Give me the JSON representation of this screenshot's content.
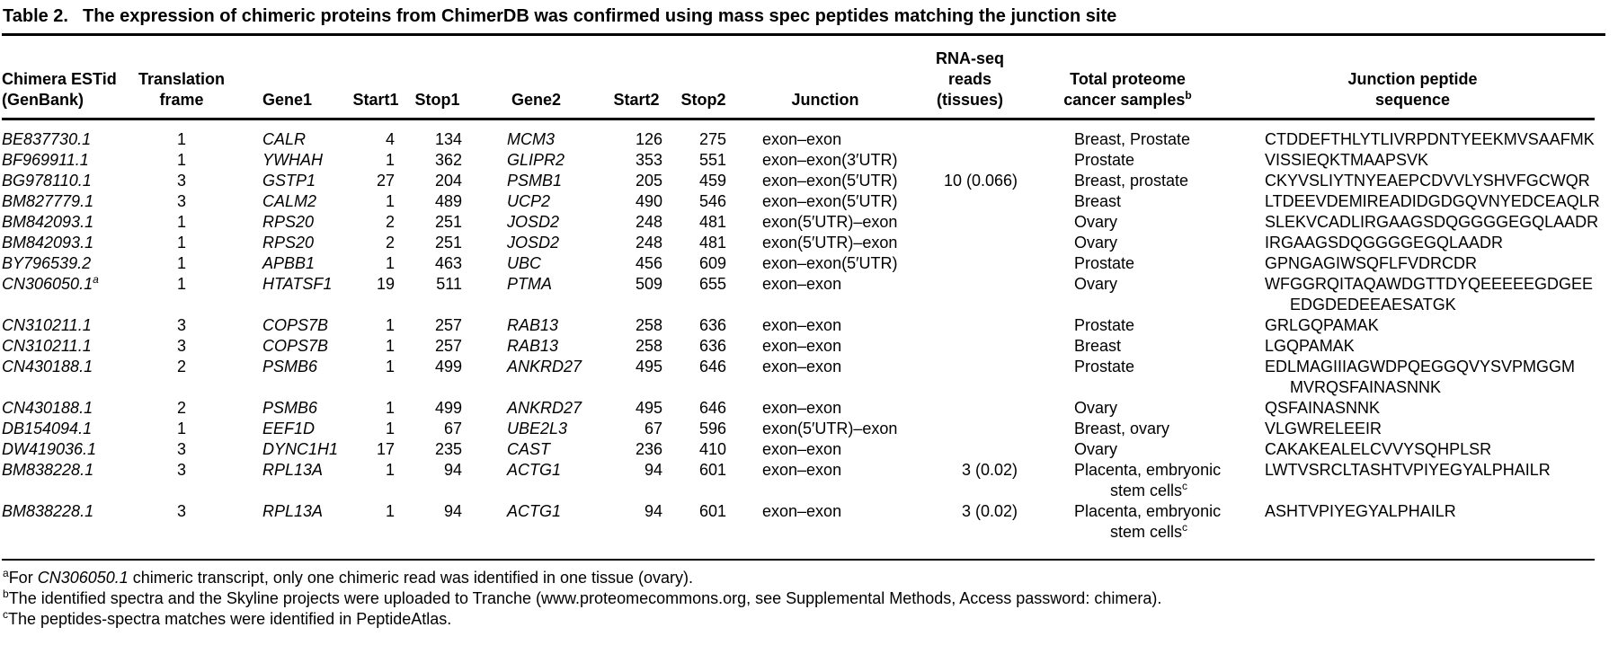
{
  "title": {
    "label": "Table 2.",
    "caption": "The expression of chimeric proteins from ChimerDB was confirmed using mass spec peptides matching the junction site"
  },
  "table": {
    "columns": [
      {
        "key": "estid",
        "label_lines": [
          "Chimera ESTid",
          "(GenBank)"
        ]
      },
      {
        "key": "frame",
        "label_lines": [
          "Translation",
          "frame"
        ]
      },
      {
        "key": "gene1",
        "label_lines": [
          "Gene1"
        ]
      },
      {
        "key": "start1",
        "label_lines": [
          "Start1"
        ]
      },
      {
        "key": "stop1",
        "label_lines": [
          "Stop1"
        ]
      },
      {
        "key": "gene2",
        "label_lines": [
          "Gene2"
        ]
      },
      {
        "key": "start2",
        "label_lines": [
          "Start2"
        ]
      },
      {
        "key": "stop2",
        "label_lines": [
          "Stop2"
        ]
      },
      {
        "key": "junction",
        "label_lines": [
          "Junction"
        ]
      },
      {
        "key": "rnaseq",
        "label_lines": [
          "RNA-seq",
          "reads",
          "(tissues)"
        ]
      },
      {
        "key": "samples",
        "label_lines": [
          "Total proteome",
          "cancer samples"
        ],
        "sup": "b"
      },
      {
        "key": "peptide",
        "label_lines": [
          "Junction peptide",
          "sequence"
        ]
      }
    ],
    "rows": [
      {
        "estid": "BE837730.1",
        "estid_sup": "",
        "frame": "1",
        "gene1": "CALR",
        "start1": "4",
        "stop1": "134",
        "gene2": "MCM3",
        "start2": "126",
        "stop2": "275",
        "junction": "exon–exon",
        "rnaseq": "",
        "samples": [
          "Breast, Prostate"
        ],
        "samples_sup": "",
        "peptide": [
          "CTDDEFTHLYTLIVRPDNTYEEKMVSAAFMK"
        ]
      },
      {
        "estid": "BF969911.1",
        "estid_sup": "",
        "frame": "1",
        "gene1": "YWHAH",
        "start1": "1",
        "stop1": "362",
        "gene2": "GLIPR2",
        "start2": "353",
        "stop2": "551",
        "junction": "exon–exon(3′UTR)",
        "rnaseq": "",
        "samples": [
          "Prostate"
        ],
        "samples_sup": "",
        "peptide": [
          "VISSIEQKTMAAPSVK"
        ]
      },
      {
        "estid": "BG978110.1",
        "estid_sup": "",
        "frame": "3",
        "gene1": "GSTP1",
        "start1": "27",
        "stop1": "204",
        "gene2": "PSMB1",
        "start2": "205",
        "stop2": "459",
        "junction": "exon–exon(5′UTR)",
        "rnaseq": "10 (0.066)",
        "samples": [
          "Breast, prostate"
        ],
        "samples_sup": "",
        "peptide": [
          "CKYVSLIYTNYEAEPCDVVLYSHVFGCWQR"
        ]
      },
      {
        "estid": "BM827779.1",
        "estid_sup": "",
        "frame": "3",
        "gene1": "CALM2",
        "start1": "1",
        "stop1": "489",
        "gene2": "UCP2",
        "start2": "490",
        "stop2": "546",
        "junction": "exon–exon(5′UTR)",
        "rnaseq": "",
        "samples": [
          "Breast"
        ],
        "samples_sup": "",
        "peptide": [
          "LTDEEVDEMIREADIDGDGQVNYEDCEAQLR"
        ]
      },
      {
        "estid": "BM842093.1",
        "estid_sup": "",
        "frame": "1",
        "gene1": "RPS20",
        "start1": "2",
        "stop1": "251",
        "gene2": "JOSD2",
        "start2": "248",
        "stop2": "481",
        "junction": "exon(5′UTR)–exon",
        "rnaseq": "",
        "samples": [
          "Ovary"
        ],
        "samples_sup": "",
        "peptide": [
          "SLEKVCADLIRGAAGSDQGGGGEGQLAADR"
        ]
      },
      {
        "estid": "BM842093.1",
        "estid_sup": "",
        "frame": "1",
        "gene1": "RPS20",
        "start1": "2",
        "stop1": "251",
        "gene2": "JOSD2",
        "start2": "248",
        "stop2": "481",
        "junction": "exon(5′UTR)–exon",
        "rnaseq": "",
        "samples": [
          "Ovary"
        ],
        "samples_sup": "",
        "peptide": [
          "IRGAAGSDQGGGGEGQLAADR"
        ]
      },
      {
        "estid": "BY796539.2",
        "estid_sup": "",
        "frame": "1",
        "gene1": "APBB1",
        "start1": "1",
        "stop1": "463",
        "gene2": "UBC",
        "start2": "456",
        "stop2": "609",
        "junction": "exon–exon(5′UTR)",
        "rnaseq": "",
        "samples": [
          "Prostate"
        ],
        "samples_sup": "",
        "peptide": [
          "GPNGAGIWSQFLFVDRCDR"
        ]
      },
      {
        "estid": "CN306050.1",
        "estid_sup": "a",
        "frame": "1",
        "gene1": "HTATSF1",
        "start1": "19",
        "stop1": "511",
        "gene2": "PTMA",
        "start2": "509",
        "stop2": "655",
        "junction": "exon–exon",
        "rnaseq": "",
        "samples": [
          "Ovary"
        ],
        "samples_sup": "",
        "peptide": [
          "WFGGRQITAQAWDGTTDYQEEEEEGDGEE",
          "EDGDEDEEAESATGK"
        ]
      },
      {
        "estid": "CN310211.1",
        "estid_sup": "",
        "frame": "3",
        "gene1": "COPS7B",
        "start1": "1",
        "stop1": "257",
        "gene2": "RAB13",
        "start2": "258",
        "stop2": "636",
        "junction": "exon–exon",
        "rnaseq": "",
        "samples": [
          "Prostate"
        ],
        "samples_sup": "",
        "peptide": [
          "GRLGQPAMAK"
        ]
      },
      {
        "estid": "CN310211.1",
        "estid_sup": "",
        "frame": "3",
        "gene1": "COPS7B",
        "start1": "1",
        "stop1": "257",
        "gene2": "RAB13",
        "start2": "258",
        "stop2": "636",
        "junction": "exon–exon",
        "rnaseq": "",
        "samples": [
          "Breast"
        ],
        "samples_sup": "",
        "peptide": [
          "LGQPAMAK"
        ]
      },
      {
        "estid": "CN430188.1",
        "estid_sup": "",
        "frame": "2",
        "gene1": "PSMB6",
        "start1": "1",
        "stop1": "499",
        "gene2": "ANKRD27",
        "start2": "495",
        "stop2": "646",
        "junction": "exon–exon",
        "rnaseq": "",
        "samples": [
          "Prostate"
        ],
        "samples_sup": "",
        "peptide": [
          "EDLMAGIIIAGWDPQEGGQVYSVPMGGM",
          "MVRQSFAINASNNK"
        ]
      },
      {
        "estid": "CN430188.1",
        "estid_sup": "",
        "frame": "2",
        "gene1": "PSMB6",
        "start1": "1",
        "stop1": "499",
        "gene2": "ANKRD27",
        "start2": "495",
        "stop2": "646",
        "junction": "exon–exon",
        "rnaseq": "",
        "samples": [
          "Ovary"
        ],
        "samples_sup": "",
        "peptide": [
          "QSFAINASNNK"
        ]
      },
      {
        "estid": "DB154094.1",
        "estid_sup": "",
        "frame": "1",
        "gene1": "EEF1D",
        "start1": "1",
        "stop1": "67",
        "gene2": "UBE2L3",
        "start2": "67",
        "stop2": "596",
        "junction": "exon(5′UTR)–exon",
        "rnaseq": "",
        "samples": [
          "Breast, ovary"
        ],
        "samples_sup": "",
        "peptide": [
          "VLGWRELEEIR"
        ]
      },
      {
        "estid": "DW419036.1",
        "estid_sup": "",
        "frame": "3",
        "gene1": "DYNC1H1",
        "start1": "17",
        "stop1": "235",
        "gene2": "CAST",
        "start2": "236",
        "stop2": "410",
        "junction": "exon–exon",
        "rnaseq": "",
        "samples": [
          "Ovary"
        ],
        "samples_sup": "",
        "peptide": [
          "CAKAKEALELCVVYSQHPLSR"
        ]
      },
      {
        "estid": "BM838228.1",
        "estid_sup": "",
        "frame": "3",
        "gene1": "RPL13A",
        "start1": "1",
        "stop1": "94",
        "gene2": "ACTG1",
        "start2": "94",
        "stop2": "601",
        "junction": "exon–exon",
        "rnaseq": "3 (0.02)",
        "samples": [
          "Placenta, embryonic",
          "stem cells"
        ],
        "samples_sup": "c",
        "peptide": [
          "LWTVSRCLTASHTVPIYEGYALPHAILR"
        ]
      },
      {
        "estid": "BM838228.1",
        "estid_sup": "",
        "frame": "3",
        "gene1": "RPL13A",
        "start1": "1",
        "stop1": "94",
        "gene2": "ACTG1",
        "start2": "94",
        "stop2": "601",
        "junction": "exon–exon",
        "rnaseq": "3 (0.02)",
        "samples": [
          "Placenta, embryonic",
          "stem cells"
        ],
        "samples_sup": "c",
        "peptide": [
          "ASHTVPIYEGYALPHAILR"
        ]
      }
    ]
  },
  "footnotes": [
    {
      "sup": "a",
      "prefix": "For ",
      "italic": "CN306050.1",
      "suffix": " chimeric transcript, only one chimeric read was identified in one tissue (ovary)."
    },
    {
      "sup": "b",
      "prefix": "The identified spectra and the Skyline projects were uploaded to Tranche (www.proteomecommons.org, see Supplemental Methods, Access password: chimera).",
      "italic": "",
      "suffix": ""
    },
    {
      "sup": "c",
      "prefix": "The peptides-spectra matches were identified in PeptideAtlas.",
      "italic": "",
      "suffix": ""
    }
  ]
}
